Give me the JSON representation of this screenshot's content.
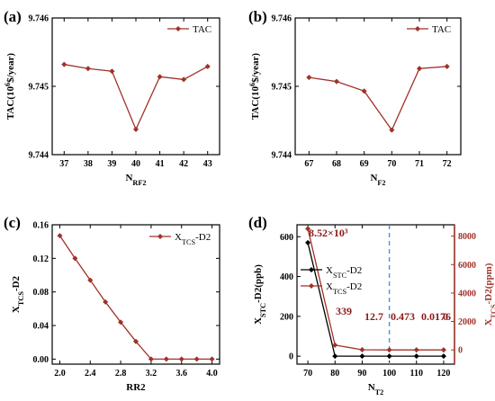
{
  "chart_data": [
    {
      "panel": "(a)",
      "type": "line",
      "xlabel": "N",
      "xlabel_sub": "RF2",
      "ylabel": "TAC(10",
      "ylabel_sup": "6",
      "ylabel_post": "$/year)",
      "x": [
        37,
        38,
        39,
        40,
        41,
        42,
        43
      ],
      "xticks": [
        "37",
        "38",
        "39",
        "40",
        "41",
        "42",
        "43"
      ],
      "series": [
        {
          "name": "TAC",
          "values": [
            9.74532,
            9.74526,
            9.74522,
            9.74437,
            9.74514,
            9.7451,
            9.74529
          ]
        }
      ],
      "ylim": [
        9.744,
        9.746
      ],
      "yticks": [
        "9.744",
        "9.745",
        "9.746"
      ],
      "legend": "top-right",
      "color": "#a0322a"
    },
    {
      "panel": "(b)",
      "type": "line",
      "xlabel": "N",
      "xlabel_sub": "F2",
      "ylabel": "TAC(10",
      "ylabel_sup": "6",
      "ylabel_post": "$/year)",
      "x": [
        67,
        68,
        69,
        70,
        71,
        72
      ],
      "xticks": [
        "67",
        "68",
        "69",
        "70",
        "71",
        "72"
      ],
      "series": [
        {
          "name": "TAC",
          "values": [
            9.74513,
            9.74507,
            9.74493,
            9.74436,
            9.74526,
            9.74529
          ]
        }
      ],
      "ylim": [
        9.744,
        9.746
      ],
      "yticks": [
        "9.744",
        "9.745",
        "9.746"
      ],
      "legend": "top-right",
      "color": "#a0322a"
    },
    {
      "panel": "(c)",
      "type": "line",
      "xlabel": "RR2",
      "ylabel": "X",
      "ylabel_sub": "TCS",
      "ylabel_post": "-D2",
      "x": [
        2.0,
        2.2,
        2.4,
        2.6,
        2.8,
        3.0,
        3.2,
        3.4,
        3.6,
        3.8,
        4.0
      ],
      "xticks": [
        "2.0",
        "2.4",
        "2.8",
        "3.2",
        "3.6",
        "4.0"
      ],
      "series": [
        {
          "name": "X",
          "name_sub": "TCS",
          "name_post": "-D2",
          "values": [
            0.147,
            0.12,
            0.094,
            0.068,
            0.044,
            0.021,
            0.0,
            0.0,
            0.0,
            0.0,
            0.0
          ]
        }
      ],
      "ylim": [
        -0.006,
        0.16
      ],
      "yticks": [
        "0.00",
        "0.04",
        "0.08",
        "0.12",
        "0.16"
      ],
      "legend": "top-right",
      "color": "#a0322a"
    },
    {
      "panel": "(d)",
      "type": "line",
      "xlabel": "N",
      "xlabel_sub": "T2",
      "ylabel_left": "X",
      "ylabel_left_sub": "STC",
      "ylabel_left_post": "-D2(ppb)",
      "ylabel_right": "X",
      "ylabel_right_sub": "TCS",
      "ylabel_right_post": "-D2(ppm)",
      "x": [
        70,
        80,
        90,
        100,
        110,
        120
      ],
      "xticks": [
        "70",
        "80",
        "90",
        "100",
        "110",
        "120"
      ],
      "ylim_left": [
        -40,
        660
      ],
      "yticks_left": [
        "0",
        "200",
        "400",
        "600"
      ],
      "ylim_right": [
        -1000,
        8800
      ],
      "yticks_right": [
        "0",
        "2000",
        "4000",
        "6000",
        "8000"
      ],
      "series": [
        {
          "name": "X",
          "name_sub": "STC",
          "name_post": "-D2",
          "axis": "left",
          "color": "#000000",
          "values": [
            570,
            0,
            0,
            0,
            0,
            0
          ]
        },
        {
          "name": "X",
          "name_sub": "TCS",
          "name_post": "-D2",
          "axis": "right",
          "color": "#a0322a",
          "values": [
            8520,
            339,
            12.7,
            0.473,
            0.0176,
            0
          ]
        }
      ],
      "annotations": [
        "8.52×10³",
        "339",
        "12.7",
        "0.473",
        "0.0176",
        "0"
      ],
      "vline_x": 100,
      "vline_color": "#3a8ee6",
      "legend": "center-left"
    }
  ]
}
